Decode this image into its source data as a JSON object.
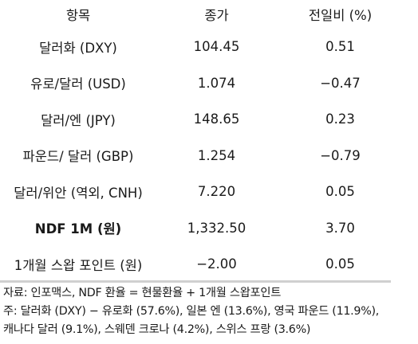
{
  "table": {
    "headers": {
      "item": "항목",
      "close": "종가",
      "change": "전일비 (%)"
    },
    "rows": [
      {
        "item": "달러화 (DXY)",
        "close": "104.45",
        "change": "0.51"
      },
      {
        "item": "유로/달러 (USD)",
        "close": "1.074",
        "change": "−0.47"
      },
      {
        "item": "달러/엔 (JPY)",
        "close": "148.65",
        "change": "0.23"
      },
      {
        "item": "파운드/ 달러 (GBP)",
        "close": "1.254",
        "change": "−0.79"
      },
      {
        "item": "달러/위안 (역외, CNH)",
        "close": "7.220",
        "change": "0.05"
      },
      {
        "item": "NDF 1M (원)",
        "close": "1,332.50",
        "change": "3.70"
      },
      {
        "item": "1개월 스왑 포인트 (원)",
        "close": "−2.00",
        "change": "0.05"
      }
    ]
  },
  "notes": {
    "source": "자료: 인포맥스, NDF 환율 = 현물환율 + 1개월 스왑포인트",
    "note_line1": "주: 달러화 (DXY) − 유로화 (57.6%), 일본 엔 (13.6%), 영국 파운드 (11.9%),",
    "note_line2": "캐나다 달러 (9.1%), 스웨덴 크로나 (4.2%), 스위스 프랑 (3.6%)"
  }
}
